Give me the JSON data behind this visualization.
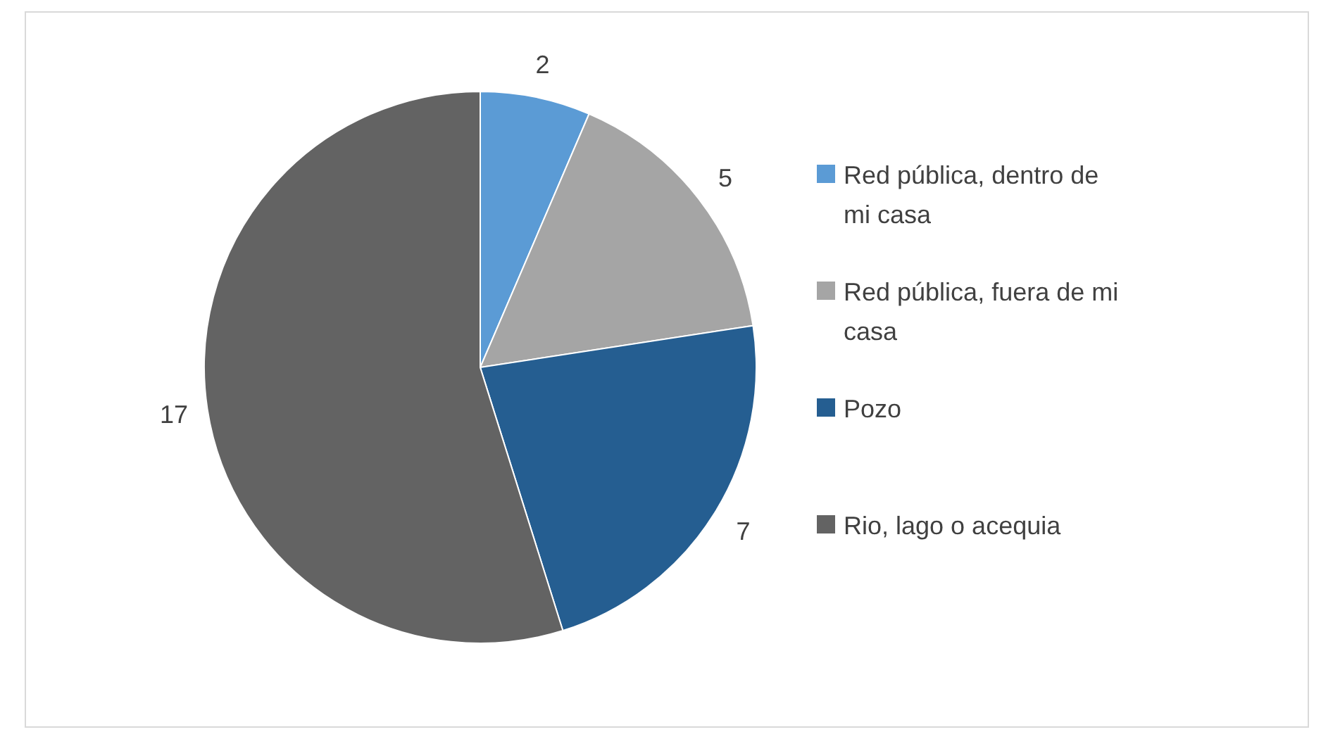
{
  "chart_data": {
    "type": "pie",
    "categories": [
      "Red pública, dentro de mi casa",
      "Red pública, fuera de mi casa",
      "Pozo",
      "Rio, lago o acequia"
    ],
    "values": [
      2,
      5,
      7,
      17
    ],
    "colors": [
      "#5b9bd5",
      "#a5a5a5",
      "#255e91",
      "#636363"
    ],
    "data_labels": true,
    "legend": "right"
  }
}
